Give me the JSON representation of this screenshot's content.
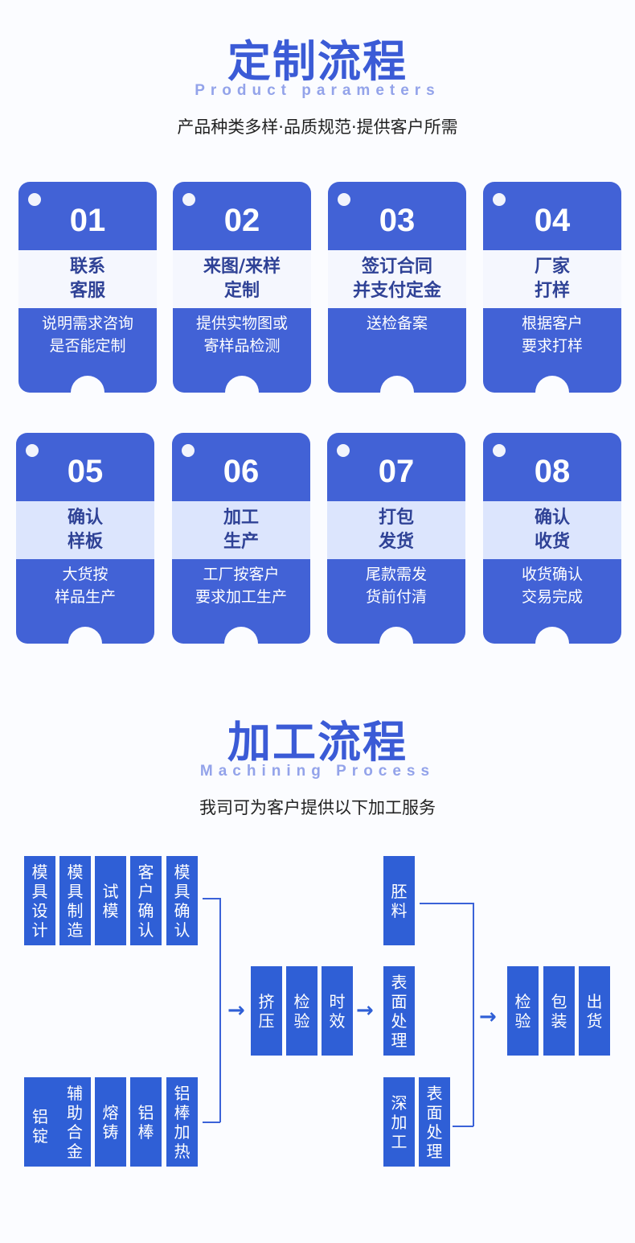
{
  "section1": {
    "title": "定制流程",
    "subtitle": "Product parameters",
    "description": "产品种类多样·品质规范·提供客户所需",
    "cards": [
      {
        "num": "01",
        "title": "联系\n客服",
        "desc": "说明需求咨询\n是否能定制"
      },
      {
        "num": "02",
        "title": "来图/来样\n定制",
        "desc": "提供实物图或\n寄样品检测"
      },
      {
        "num": "03",
        "title": "签订合同\n并支付定金",
        "desc": "送检备案"
      },
      {
        "num": "04",
        "title": "厂家\n打样",
        "desc": "根据客户\n要求打样"
      },
      {
        "num": "05",
        "title": "确认\n样板",
        "desc": "大货按\n样品生产"
      },
      {
        "num": "06",
        "title": "加工\n生产",
        "desc": "工厂按客户\n要求加工生产"
      },
      {
        "num": "07",
        "title": "打包\n发货",
        "desc": "尾款需发\n货前付清"
      },
      {
        "num": "08",
        "title": "确认\n收货",
        "desc": "收货确认\n交易完成"
      }
    ]
  },
  "section2": {
    "title": "加工流程",
    "subtitle": "Machining Process",
    "description": "我司可为客户提供以下加工服务",
    "mold_steps": [
      "模具设计",
      "模具制造",
      "试模",
      "客户确认",
      "模具确认"
    ],
    "material_steps": [
      "铝锭",
      "辅助合金",
      "熔铸",
      "铝棒",
      "铝棒加热"
    ],
    "middle_steps": [
      "挤压",
      "检验",
      "时效"
    ],
    "finish_steps": [
      "胚料",
      "表面处理",
      "深加工",
      "表面处理"
    ],
    "final_steps": [
      "检验",
      "包装",
      "出货"
    ],
    "arrow": "→"
  },
  "colors": {
    "accent": "#3b5bd6",
    "card": "#4262d6",
    "process": "#2f5fd6"
  }
}
